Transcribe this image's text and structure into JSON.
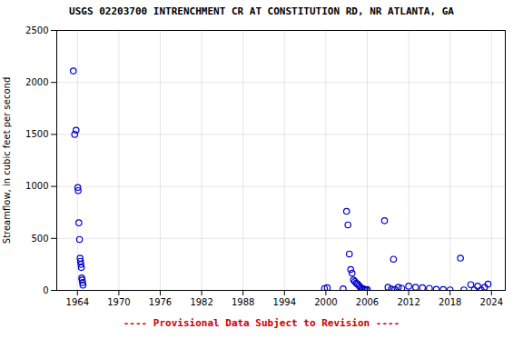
{
  "chart_data": {
    "type": "scatter",
    "title": "USGS 02203700 INTRENCHMENT CR AT CONSTITUTION RD, NR ATLANTA, GA",
    "ylabel": "Streamflow, in cubic feet per second",
    "annotations": [
      {
        "text": "---- Provisional Data Subject to Revision ----",
        "color": "#cc0000"
      }
    ],
    "color": "#0000cc",
    "marker": "circle",
    "grid": true,
    "xlim": [
      1961,
      2026
    ],
    "ylim": [
      0,
      2500
    ],
    "xticks": [
      1964,
      1970,
      1976,
      1982,
      1988,
      1994,
      2000,
      2006,
      2012,
      2018,
      2024
    ],
    "yticks": [
      0,
      500,
      1000,
      1500,
      2000,
      2500
    ],
    "x": [
      1963.4,
      1963.6,
      1963.8,
      1964.05,
      1964.1,
      1964.2,
      1964.3,
      1964.38,
      1964.44,
      1964.5,
      1964.56,
      1964.62,
      1964.68,
      1964.74,
      1964.8,
      1999.8,
      2000.2,
      2002.5,
      2003.0,
      2003.2,
      2003.4,
      2003.6,
      2003.8,
      2004.0,
      2004.2,
      2004.4,
      2004.6,
      2004.8,
      2005.0,
      2005.2,
      2005.4,
      2005.6,
      2005.8,
      2006.0,
      2009.0,
      2010.5,
      2011.0,
      2009.5,
      2010.0,
      2019.5,
      2021.0,
      2022.0,
      2023.0,
      2023.5,
      2008.5,
      2009.8,
      2012.0,
      2013.0,
      2014.0,
      2015.0,
      2016.0,
      2017.0,
      2018.0,
      2020.0,
      2021.5,
      2022.5
    ],
    "values": [
      2110,
      1500,
      1540,
      990,
      960,
      650,
      490,
      310,
      280,
      250,
      220,
      120,
      100,
      75,
      50,
      18,
      25,
      15,
      760,
      630,
      350,
      200,
      165,
      100,
      85,
      70,
      60,
      45,
      30,
      20,
      15,
      10,
      5,
      8,
      30,
      30,
      20,
      12,
      8,
      310,
      55,
      40,
      30,
      60,
      670,
      300,
      40,
      30,
      25,
      20,
      10,
      8,
      5,
      5,
      5,
      5
    ]
  }
}
